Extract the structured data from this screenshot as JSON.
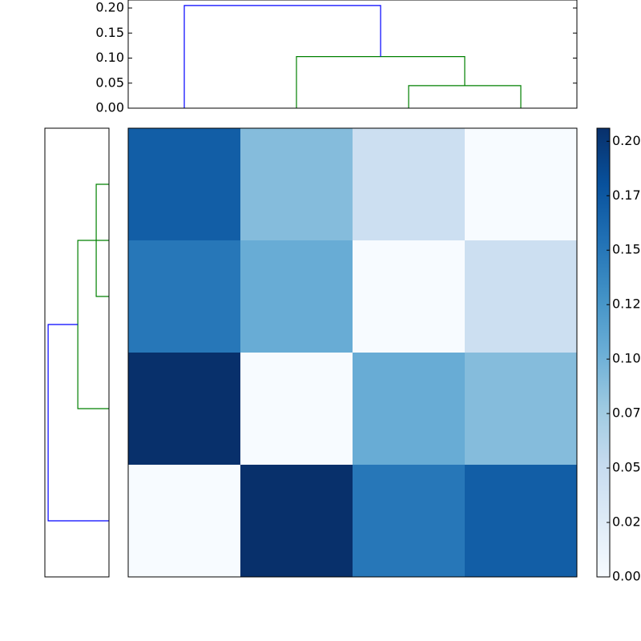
{
  "chart_data": [
    {
      "type": "dendrogram",
      "orientation": "top",
      "links": [
        {
          "icoord": [
            25,
            25,
            35,
            35
          ],
          "dcoord": [
            0,
            0.045,
            0.045,
            0
          ],
          "color": "#008000"
        },
        {
          "icoord": [
            15,
            15,
            30,
            30
          ],
          "dcoord": [
            0,
            0.103,
            0.103,
            0.045
          ],
          "color": "#008000"
        },
        {
          "icoord": [
            5,
            5,
            22.5,
            22.5
          ],
          "dcoord": [
            0,
            0.205,
            0.205,
            0.103
          ],
          "color": "#0000ff"
        }
      ],
      "xlim": [
        0,
        40
      ],
      "ylim": [
        0,
        0.216
      ],
      "yticks": [
        {
          "value": 0,
          "label": "0.00"
        },
        {
          "value": 0.05,
          "label": "0.05"
        },
        {
          "value": 0.1,
          "label": "0.10"
        },
        {
          "value": 0.15,
          "label": "0.15"
        },
        {
          "value": 0.2,
          "label": "0.20"
        }
      ]
    },
    {
      "type": "dendrogram",
      "orientation": "left",
      "links": [
        {
          "icoord": [
            5,
            5,
            15,
            15
          ],
          "dcoord": [
            0,
            0.043,
            0.043,
            0
          ],
          "color": "#008000"
        },
        {
          "icoord": [
            10,
            10,
            25,
            25
          ],
          "dcoord": [
            0,
            0.105,
            0.105,
            0
          ],
          "color": "#008000"
        },
        {
          "icoord": [
            17.5,
            17.5,
            35,
            35
          ],
          "dcoord": [
            0.105,
            0.205,
            0.205,
            0
          ],
          "color": "#0000ff"
        }
      ],
      "xlim": [
        0.216,
        0
      ],
      "ylim": [
        0,
        40
      ]
    },
    {
      "type": "heatmap",
      "colormap": "Blues",
      "values": [
        [
          0.17,
          0.09,
          0.045,
          0
        ],
        [
          0.15,
          0.105,
          0,
          0.045
        ],
        [
          0.206,
          0,
          0.105,
          0.09
        ],
        [
          0,
          0.206,
          0.15,
          0.17
        ]
      ],
      "clim": [
        0,
        0.206
      ],
      "cticks": [
        {
          "value": 0,
          "label": "0.00"
        },
        {
          "value": 0.025,
          "label": "0.02"
        },
        {
          "value": 0.05,
          "label": "0.05"
        },
        {
          "value": 0.075,
          "label": "0.07"
        },
        {
          "value": 0.1,
          "label": "0.10"
        },
        {
          "value": 0.125,
          "label": "0.12"
        },
        {
          "value": 0.15,
          "label": "0.15"
        },
        {
          "value": 0.175,
          "label": "0.17"
        },
        {
          "value": 0.2,
          "label": "0.20"
        }
      ]
    }
  ]
}
